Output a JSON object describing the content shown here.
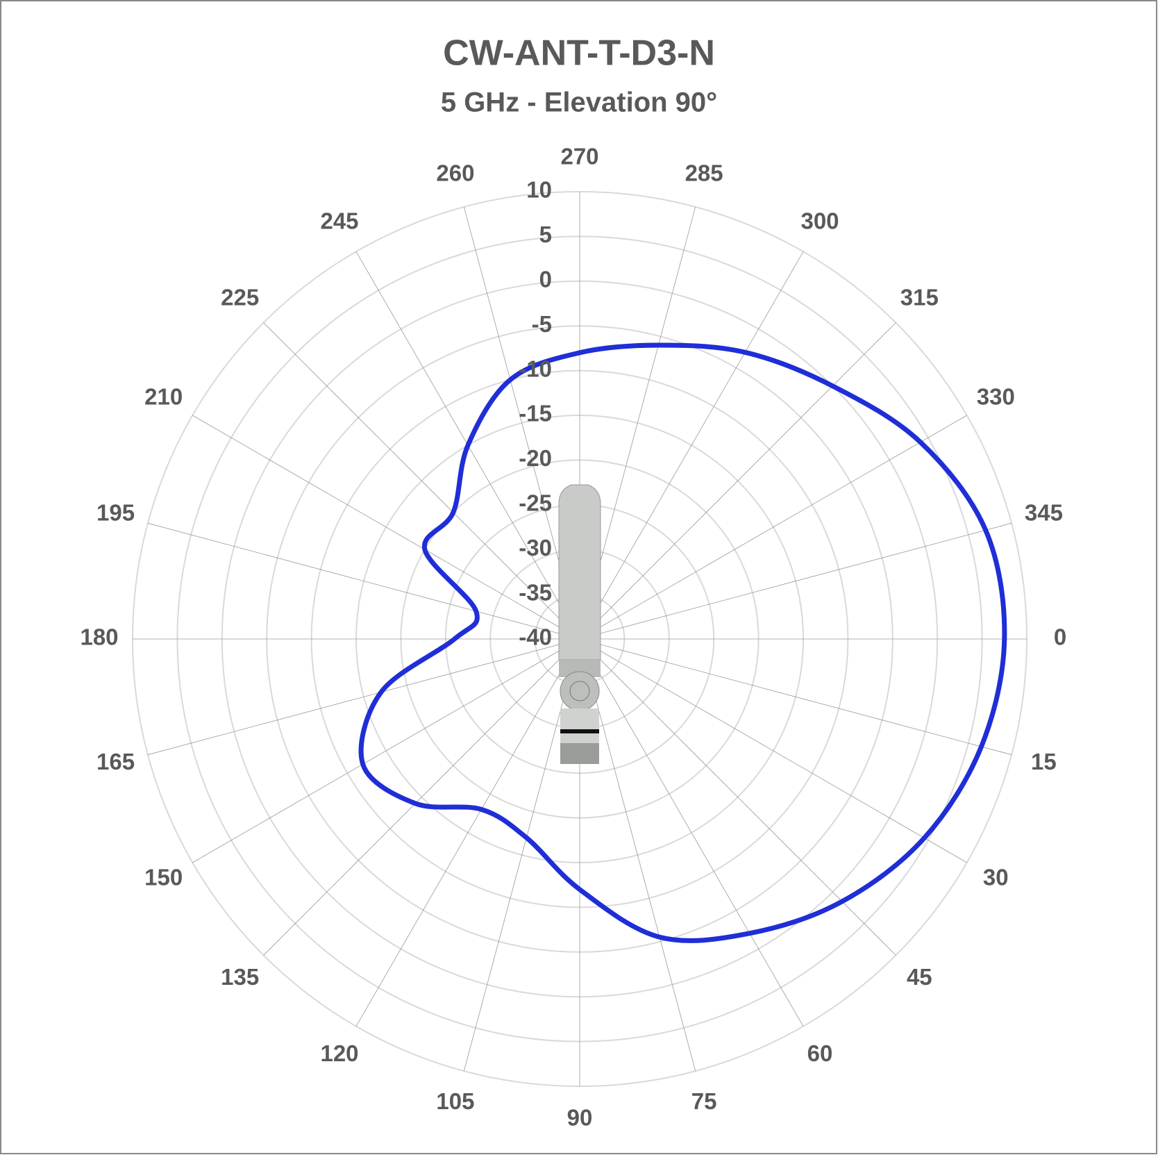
{
  "chart_data": {
    "type": "radar",
    "title": "CW-ANT-T-D3-N",
    "subtitle": "5 GHz - Elevation 90°",
    "categories": [
      "270",
      "285",
      "300",
      "315",
      "330",
      "345",
      "0",
      "15",
      "30",
      "45",
      "60",
      "75",
      "90",
      "105",
      "120",
      "135",
      "150",
      "165",
      "180",
      "195",
      "210",
      "225",
      "245",
      "260"
    ],
    "series": [
      {
        "color": "#1f2ed6",
        "values": [
          -8,
          -6,
          -3,
          0,
          4,
          7,
          7.5,
          6.5,
          4.5,
          1.5,
          -2,
          -5.5,
          -12,
          -17,
          -18,
          -14,
          -12,
          -17,
          -26,
          -28,
          -20,
          -20,
          -15,
          -10
        ]
      }
    ],
    "ylim": [
      -40,
      10
    ],
    "yticks": [
      -40,
      -35,
      -30,
      -25,
      -20,
      -15,
      -10,
      -5,
      0,
      5,
      10
    ],
    "grid": true
  }
}
